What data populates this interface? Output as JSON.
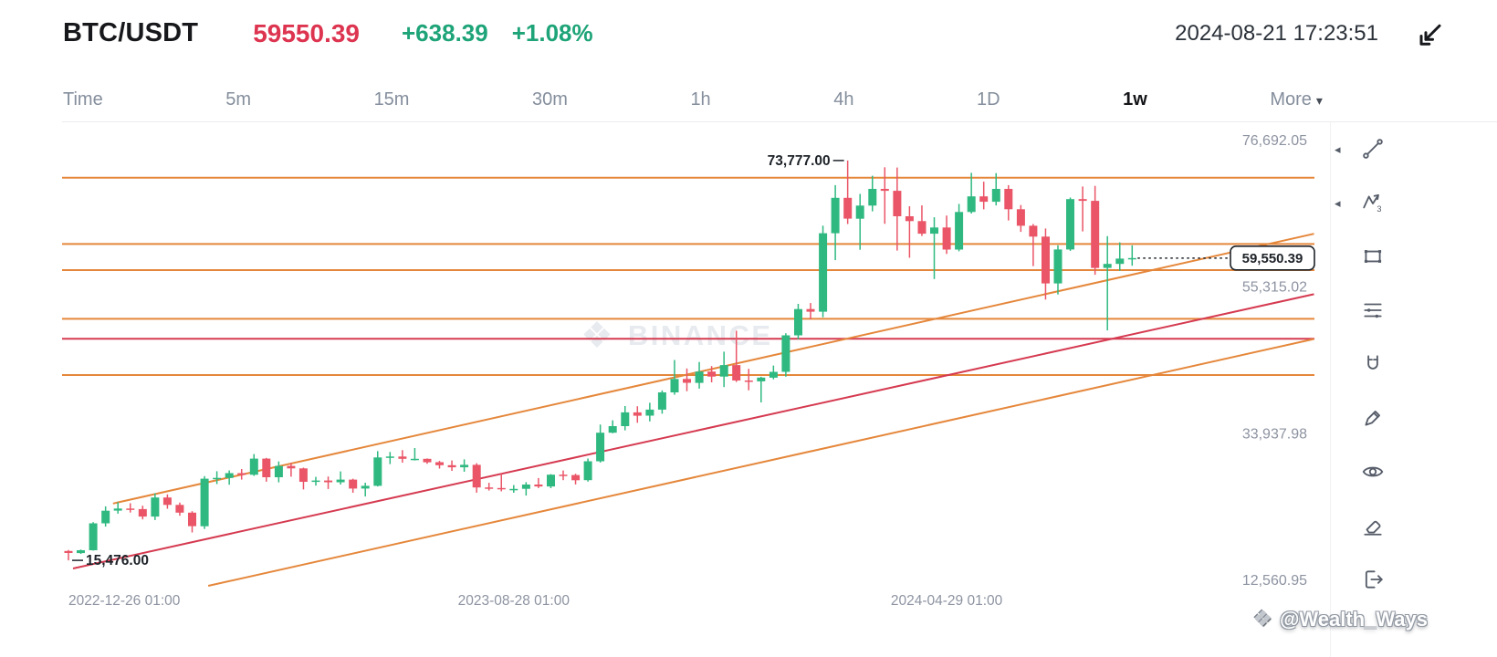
{
  "header": {
    "symbol": "BTC/USDT",
    "last_price": "59550.39",
    "change": "+638.39",
    "change_pct": "+1.08%",
    "timestamp": "2024-08-21 17:23:51"
  },
  "tabs": {
    "items": [
      {
        "label": "Time"
      },
      {
        "label": "5m"
      },
      {
        "label": "15m"
      },
      {
        "label": "30m"
      },
      {
        "label": "1h"
      },
      {
        "label": "4h"
      },
      {
        "label": "1D"
      },
      {
        "label": "1w",
        "active": true
      },
      {
        "label": "More"
      }
    ],
    "caret": "▾"
  },
  "icons": {
    "diamond": "❖",
    "chevron_left": "◂"
  },
  "toolbar": {
    "tools": [
      "trendline",
      "pattern",
      "shapes",
      "fib-lines",
      "magnet",
      "pencil",
      "visibility",
      "eraser",
      "exit"
    ]
  },
  "watermarks": {
    "binance": "BINANCE",
    "credit": "@Wealth_Ways"
  },
  "chart_data": {
    "type": "candlestick",
    "symbol": "BTC/USDT",
    "interval": "1w",
    "colors": {
      "up": "#2fb980",
      "down": "#ea5567",
      "line_orange": "#e5873b",
      "line_red": "#d53a50",
      "marker": "#1e2329",
      "axis_text": "#8d93a1"
    },
    "y_axis_labels": [
      {
        "text": "76,692.05",
        "price": 76692.05
      },
      {
        "text": "55,315.02",
        "price": 55315.02
      },
      {
        "text": "33,937.98",
        "price": 33937.98
      },
      {
        "text": "12,560.95",
        "price": 12560.95
      }
    ],
    "x_axis_labels": [
      {
        "text": "2022-12-26 01:00",
        "index": 0,
        "anchor": "start"
      },
      {
        "text": "2023-08-28 01:00",
        "index": 36
      },
      {
        "text": "2024-04-29 01:00",
        "index": 71
      }
    ],
    "horizontal_lines": [
      {
        "price": 71280,
        "color": "orange"
      },
      {
        "price": 61600,
        "color": "orange"
      },
      {
        "price": 57800,
        "color": "orange"
      },
      {
        "price": 50700,
        "color": "orange"
      },
      {
        "price": 47800,
        "color": "red"
      },
      {
        "price": 42500,
        "color": "orange"
      }
    ],
    "trend_lines": [
      {
        "i1": 3.6,
        "p1": 23760,
        "i2": 100.7,
        "p2": 63090,
        "color": "orange"
      },
      {
        "i1": 0.37,
        "p1": 14290,
        "i2": 100.7,
        "p2": 54290,
        "color": "red"
      },
      {
        "i1": 11.3,
        "p1": 11760,
        "i2": 100.7,
        "p2": 47760,
        "color": "orange"
      }
    ],
    "annotations": [
      {
        "text": "73,777.00",
        "price": 73777,
        "index": 63,
        "side": "left"
      },
      {
        "text": "15,476.00",
        "price": 15476,
        "index": 0,
        "side": "right"
      }
    ],
    "last_price": {
      "text": "59,550.39",
      "price": 59550.39
    },
    "candles": [
      [
        16840,
        16990,
        15476,
        16542
      ],
      [
        16542,
        17040,
        16420,
        16950
      ],
      [
        16950,
        21050,
        16900,
        20880
      ],
      [
        20880,
        23350,
        20400,
        22720
      ],
      [
        22720,
        23950,
        22290,
        23030
      ],
      [
        23030,
        23800,
        22450,
        22950
      ],
      [
        22950,
        23450,
        21450,
        21860
      ],
      [
        21860,
        25250,
        21360,
        24640
      ],
      [
        24640,
        25100,
        23000,
        23560
      ],
      [
        23560,
        23900,
        21980,
        22430
      ],
      [
        22430,
        22650,
        19550,
        20460
      ],
      [
        20460,
        27750,
        20050,
        27390
      ],
      [
        27390,
        28470,
        26600,
        27500
      ],
      [
        27500,
        28600,
        26500,
        28200
      ],
      [
        28200,
        28800,
        27250,
        27950
      ],
      [
        27950,
        30980,
        27800,
        30310
      ],
      [
        30310,
        30420,
        26940,
        27600
      ],
      [
        27600,
        29900,
        26850,
        29250
      ],
      [
        29250,
        29700,
        27680,
        28890
      ],
      [
        28890,
        28990,
        25810,
        26930
      ],
      [
        26930,
        27650,
        26370,
        27120
      ],
      [
        27120,
        27700,
        25880,
        26870
      ],
      [
        26870,
        28450,
        26530,
        27250
      ],
      [
        27250,
        27390,
        25330,
        25940
      ],
      [
        25940,
        26800,
        24790,
        26340
      ],
      [
        26340,
        31400,
        26250,
        30480
      ],
      [
        30480,
        31280,
        29510,
        30620
      ],
      [
        30620,
        31550,
        29730,
        30290
      ],
      [
        30290,
        31850,
        30040,
        30290
      ],
      [
        30290,
        30340,
        29550,
        29790
      ],
      [
        29790,
        29980,
        28860,
        29350
      ],
      [
        29350,
        30050,
        28530,
        29040
      ],
      [
        29040,
        30200,
        28390,
        29400
      ],
      [
        29400,
        29650,
        25350,
        26100
      ],
      [
        26100,
        26790,
        25660,
        26030
      ],
      [
        26030,
        28150,
        25530,
        25870
      ],
      [
        25870,
        26450,
        25330,
        25900
      ],
      [
        25900,
        26880,
        24920,
        26530
      ],
      [
        26530,
        27480,
        26010,
        26250
      ],
      [
        26250,
        28050,
        26000,
        27970
      ],
      [
        27970,
        28580,
        27170,
        27920
      ],
      [
        27920,
        28100,
        26540,
        27160
      ],
      [
        27160,
        30330,
        26960,
        29920
      ],
      [
        29920,
        35280,
        29740,
        34090
      ],
      [
        34090,
        35900,
        34010,
        35050
      ],
      [
        35050,
        37980,
        34440,
        37060
      ],
      [
        37060,
        37950,
        35540,
        36570
      ],
      [
        36570,
        38450,
        35740,
        37450
      ],
      [
        37450,
        40250,
        36860,
        39970
      ],
      [
        39970,
        44700,
        39630,
        41920
      ],
      [
        41920,
        43450,
        40140,
        41360
      ],
      [
        41360,
        44400,
        40520,
        43010
      ],
      [
        43010,
        43800,
        41440,
        42280
      ],
      [
        42280,
        45900,
        40740,
        43950
      ],
      [
        43950,
        48970,
        41490,
        41700
      ],
      [
        41700,
        43400,
        40270,
        41580
      ],
      [
        41580,
        42250,
        38510,
        42120
      ],
      [
        42120,
        43880,
        41870,
        42970
      ],
      [
        42970,
        48590,
        42260,
        48290
      ],
      [
        48290,
        52880,
        47700,
        52120
      ],
      [
        52120,
        52990,
        50620,
        51730
      ],
      [
        51730,
        64280,
        50920,
        63170
      ],
      [
        63170,
        70180,
        59250,
        68330
      ],
      [
        68330,
        73777,
        64520,
        65300
      ],
      [
        65300,
        68910,
        60760,
        67210
      ],
      [
        67210,
        71560,
        66370,
        69640
      ],
      [
        69640,
        72800,
        64540,
        69360
      ],
      [
        69360,
        72750,
        60650,
        65650
      ],
      [
        65650,
        67110,
        59590,
        64940
      ],
      [
        64940,
        67230,
        62770,
        63110
      ],
      [
        63110,
        65500,
        56500,
        64010
      ],
      [
        64010,
        65750,
        60160,
        60790
      ],
      [
        60790,
        67450,
        60540,
        66270
      ],
      [
        66270,
        71980,
        66050,
        68550
      ],
      [
        68550,
        70690,
        66660,
        67760
      ],
      [
        67760,
        71940,
        67230,
        69640
      ],
      [
        69640,
        70190,
        65040,
        66670
      ],
      [
        66670,
        67290,
        63370,
        64260
      ],
      [
        64260,
        64520,
        58390,
        62680
      ],
      [
        62680,
        63860,
        53500,
        55850
      ],
      [
        55850,
        61420,
        54250,
        60800
      ],
      [
        60800,
        68370,
        60610,
        68150
      ],
      [
        68150,
        69990,
        63440,
        67900
      ],
      [
        67900,
        70080,
        57120,
        58120
      ],
      [
        58120,
        62750,
        49000,
        58710
      ],
      [
        58710,
        61850,
        57690,
        59480
      ],
      [
        59480,
        61400,
        58440,
        59550
      ]
    ]
  }
}
